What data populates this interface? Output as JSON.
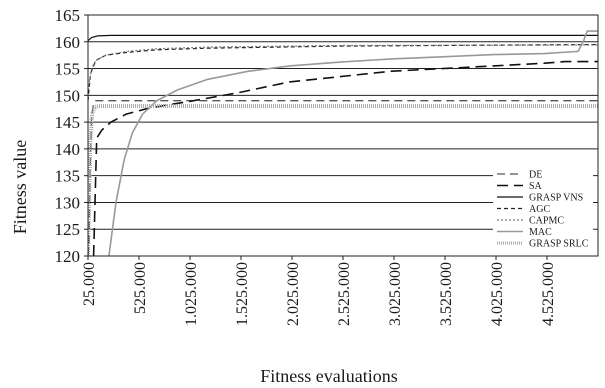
{
  "chart_data": {
    "type": "line",
    "title": "",
    "xlabel": "Fitness evaluations",
    "ylabel": "Fitness value",
    "xlim": [
      25000,
      5025000
    ],
    "ylim": [
      120,
      165
    ],
    "y_ticks": [
      120,
      125,
      130,
      135,
      140,
      145,
      150,
      155,
      160,
      165
    ],
    "y_tick_labels": [
      "120",
      "125",
      "130",
      "135",
      "140",
      "145",
      "150",
      "155",
      "160",
      "165"
    ],
    "x_ticks": [
      25000,
      525000,
      1025000,
      1525000,
      2025000,
      2525000,
      3025000,
      3525000,
      4025000,
      4525000
    ],
    "x_tick_labels": [
      "25.000",
      "525.000",
      "1.025.000",
      "1.525.000",
      "2.025.000",
      "2.525.000",
      "3.025.000",
      "3.525.000",
      "4.025.000",
      "4.525.000"
    ],
    "grid": "horizontal",
    "legend_position": "bottom-right",
    "series": [
      {
        "name": "DE",
        "color": "#555555",
        "dash": "8,5",
        "width": 1.3,
        "x": [
          25000,
          35000,
          45000,
          60000,
          80000,
          100000,
          5025000
        ],
        "y": [
          120,
          122,
          135,
          146,
          148.6,
          149,
          149
        ]
      },
      {
        "name": "SA",
        "color": "#111111",
        "dash": "11,6",
        "width": 1.6,
        "x": [
          80000,
          110000,
          160000,
          250000,
          400000,
          600000,
          800000,
          1000000,
          1500000,
          2000000,
          2500000,
          3000000,
          3500000,
          4000000,
          4500000,
          4700000,
          5025000
        ],
        "y": [
          120,
          142,
          143.5,
          145,
          146.5,
          147.5,
          148.2,
          148.8,
          150.5,
          152.5,
          153.5,
          154.5,
          155,
          155.5,
          156,
          156.3,
          156.3
        ]
      },
      {
        "name": "GRASP  VNS",
        "color": "#111111",
        "dash": "",
        "width": 1.2,
        "x": [
          25000,
          60000,
          120000,
          250000,
          600000,
          5025000
        ],
        "y": [
          160.2,
          160.8,
          161.1,
          161.2,
          161.2,
          161.2
        ]
      },
      {
        "name": "AGC",
        "color": "#222222",
        "dash": "4,3",
        "width": 1.2,
        "x": [
          25000,
          50000,
          100000,
          200000,
          400000,
          700000,
          1200000,
          2500000,
          5025000
        ],
        "y": [
          149,
          154,
          156.5,
          157.5,
          158,
          158.5,
          158.8,
          159.2,
          159.5
        ]
      },
      {
        "name": "CAPMC",
        "color": "#777777",
        "dash": "2,2",
        "width": 1.2,
        "x": [
          25000,
          60000,
          100000,
          200000,
          400000,
          700000,
          1200000,
          2500000,
          5025000
        ],
        "y": [
          151,
          155,
          156.5,
          157.5,
          158.2,
          158.7,
          159,
          159.3,
          159.4
        ]
      },
      {
        "name": "MAC",
        "color": "#999999",
        "dash": "",
        "width": 1.6,
        "x": [
          230000,
          300000,
          380000,
          460000,
          560000,
          700000,
          900000,
          1200000,
          1600000,
          2000000,
          2500000,
          3000000,
          3500000,
          4000000,
          4500000,
          4830000,
          4880000,
          4920000,
          5025000
        ],
        "y": [
          120,
          130,
          138,
          143,
          146.5,
          149,
          151,
          153,
          154.5,
          155.5,
          156.2,
          156.8,
          157.2,
          157.6,
          157.8,
          158.2,
          160,
          162,
          162
        ]
      },
      {
        "name": "GRASP  SRLC",
        "color": "#aaaaaa",
        "dash": "1,1",
        "width": 4,
        "x": [
          25000,
          45000,
          65000,
          90000,
          130000,
          5025000
        ],
        "y": [
          120,
          140,
          146.5,
          147.8,
          148,
          148
        ]
      }
    ]
  }
}
